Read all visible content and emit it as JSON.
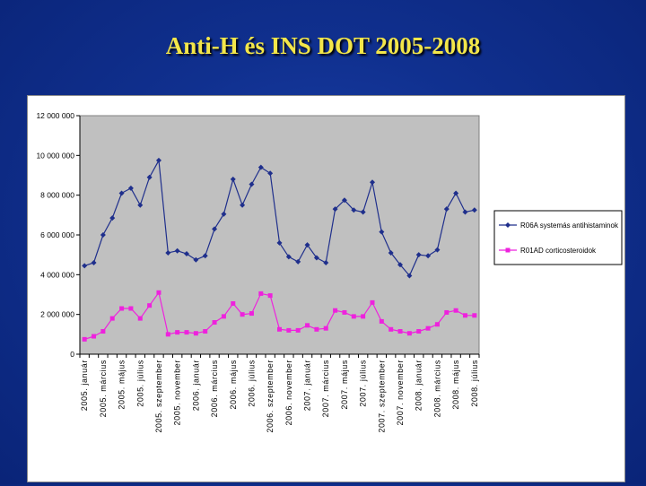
{
  "slide": {
    "title": "Anti-H és INS DOT 2005-2008"
  },
  "colors": {
    "series1": "#1f2f8c",
    "series2": "#ee22dd",
    "plot_bg": "#c0c0c0"
  },
  "chart_data": {
    "type": "line",
    "title": "",
    "xlabel": "",
    "ylabel": "",
    "ylim": [
      0,
      12000000
    ],
    "yticks": [
      0,
      2000000,
      4000000,
      6000000,
      8000000,
      10000000,
      12000000
    ],
    "ytick_labels": [
      "0",
      "2 000 000",
      "4 000 000",
      "6 000 000",
      "8 000 000",
      "10 000 000",
      "12 000 000"
    ],
    "x": [
      "2005. január",
      "2005. február",
      "2005. március",
      "2005. április",
      "2005. május",
      "2005. június",
      "2005. július",
      "2005. augusztus",
      "2005. szeptember",
      "2005. október",
      "2005. november",
      "2005. december",
      "2006. január",
      "2006. február",
      "2006. március",
      "2006. április",
      "2006. május",
      "2006. június",
      "2006. július",
      "2006. augusztus",
      "2006. szeptember",
      "2006. október",
      "2006. november",
      "2006. december",
      "2007. január",
      "2007. február",
      "2007. március",
      "2007. április",
      "2007. május",
      "2007. június",
      "2007. július",
      "2007. augusztus",
      "2007. szeptember",
      "2007. október",
      "2007. november",
      "2007. december",
      "2008. január",
      "2008. február",
      "2008. március",
      "2008. április",
      "2008. május",
      "2008. június",
      "2008. július"
    ],
    "xtick_labels": [
      "2005. január",
      "",
      "2005. március",
      "",
      "2005. május",
      "",
      "2005. július",
      "",
      "2005. szeptember",
      "",
      "2005. november",
      "",
      "2006. január",
      "",
      "2006. március",
      "",
      "2006. május",
      "",
      "2006. július",
      "",
      "2006. szeptember",
      "",
      "2006. november",
      "",
      "2007. január",
      "",
      "2007. március",
      "",
      "2007. május",
      "",
      "2007. július",
      "",
      "2007. szeptember",
      "",
      "2007. november",
      "",
      "2008. január",
      "",
      "2008. március",
      "",
      "2008. május",
      "",
      "2008. július"
    ],
    "legend_position": "right",
    "grid": false,
    "series": [
      {
        "name": "R06A systemás antihistaminok",
        "color": "#1f2f8c",
        "marker": "diamond",
        "values": [
          4450000,
          4600000,
          6000000,
          6850000,
          8100000,
          8350000,
          7500000,
          8900000,
          9750000,
          5100000,
          5200000,
          5050000,
          4750000,
          4950000,
          6300000,
          7050000,
          8800000,
          7500000,
          8550000,
          9400000,
          9100000,
          5600000,
          4900000,
          4650000,
          5500000,
          4850000,
          4600000,
          7300000,
          7750000,
          7250000,
          7150000,
          8650000,
          6150000,
          5100000,
          4500000,
          3950000,
          5000000,
          4950000,
          5250000,
          7300000,
          8100000,
          7150000,
          7250000
        ]
      },
      {
        "name": "R01AD corticosteroidok",
        "color": "#ee22dd",
        "marker": "square",
        "values": [
          750000,
          900000,
          1150000,
          1800000,
          2300000,
          2300000,
          1800000,
          2450000,
          3100000,
          1000000,
          1100000,
          1100000,
          1050000,
          1150000,
          1600000,
          1900000,
          2550000,
          2000000,
          2050000,
          3050000,
          2950000,
          1250000,
          1200000,
          1200000,
          1450000,
          1250000,
          1300000,
          2200000,
          2100000,
          1900000,
          1900000,
          2600000,
          1650000,
          1250000,
          1150000,
          1050000,
          1150000,
          1300000,
          1500000,
          2100000,
          2200000,
          1950000,
          1950000
        ]
      }
    ]
  }
}
